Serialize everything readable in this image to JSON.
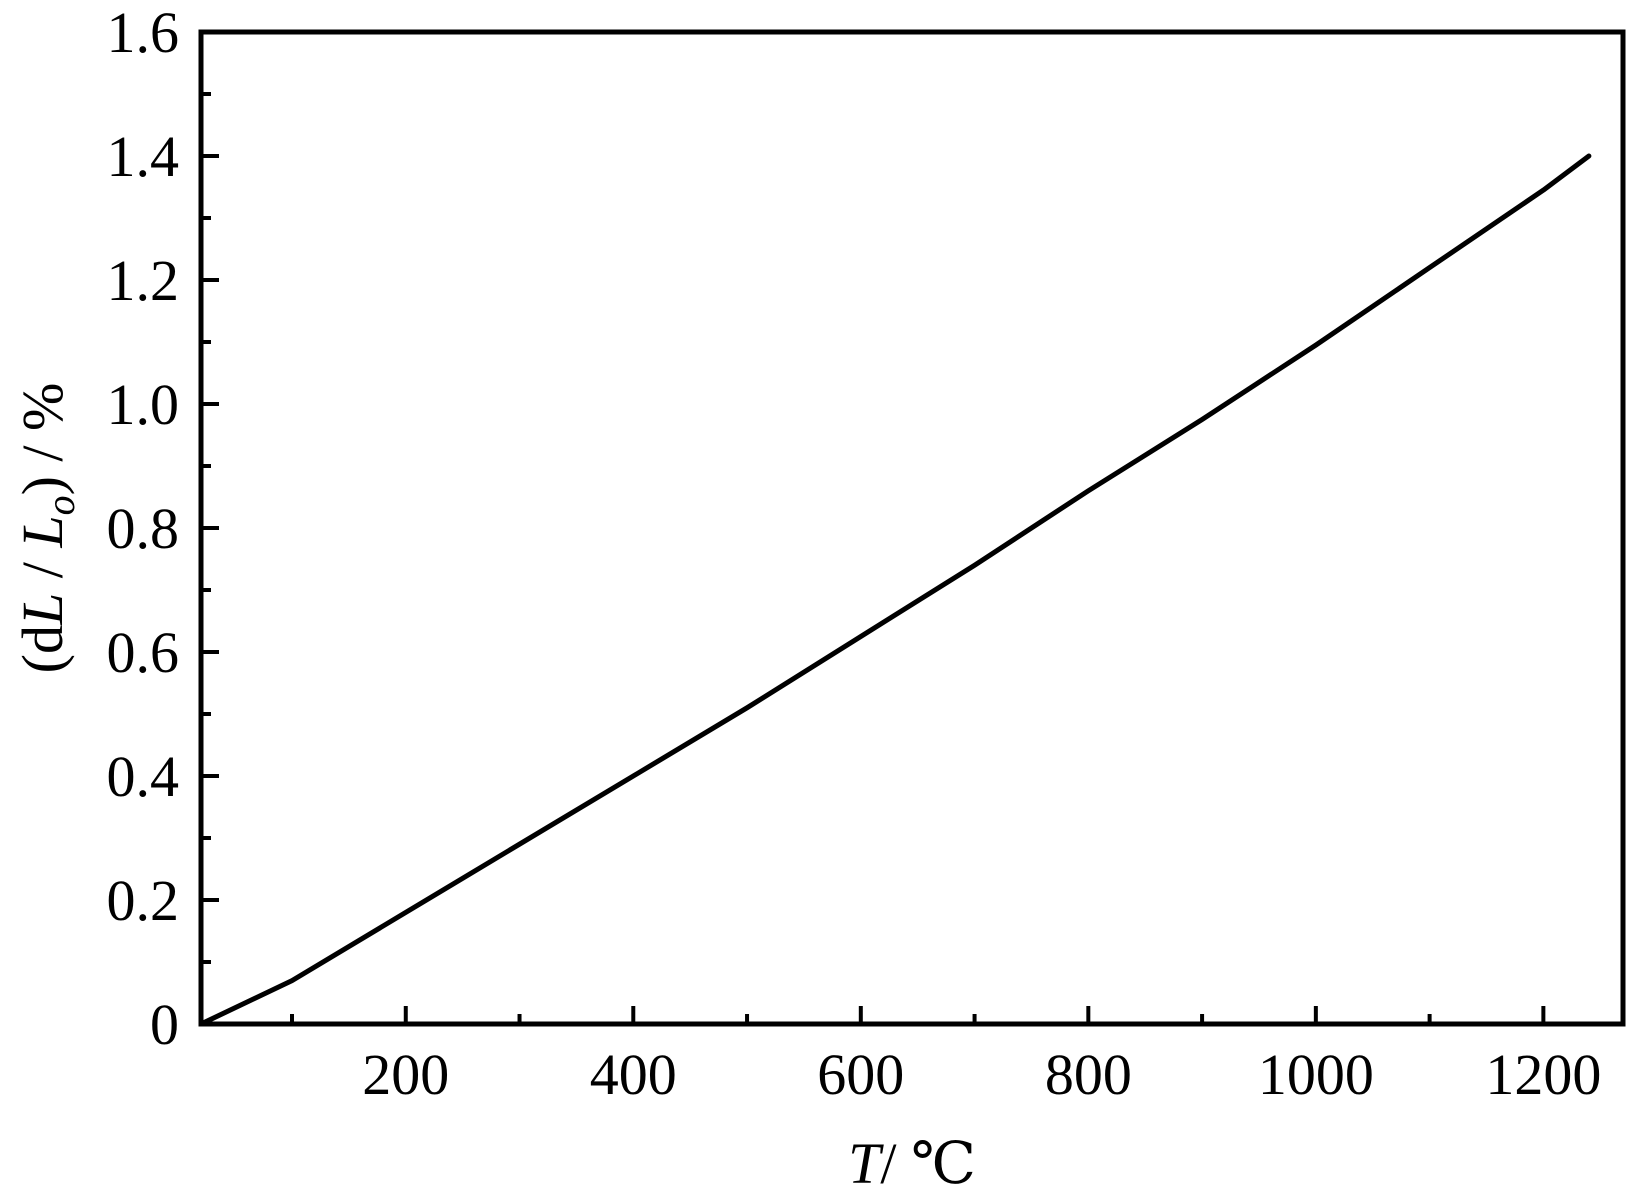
{
  "chart_data": {
    "type": "line",
    "title": "",
    "xlabel": {
      "var": "T",
      "unit": "/ ℃"
    },
    "ylabel": {
      "open": "(d",
      "var1": "L",
      "slash": " / ",
      "var2": "L",
      "sub": "o",
      "close": ") / %"
    },
    "xlim": [
      20,
      1270
    ],
    "ylim": [
      0,
      1.6
    ],
    "x_ticks": [
      200,
      400,
      600,
      800,
      1000,
      1200
    ],
    "x_tick_labels": [
      "200",
      "400",
      "600",
      "800",
      "1000",
      "1200"
    ],
    "x_minor_ticks": [
      100,
      300,
      500,
      700,
      900,
      1100
    ],
    "y_ticks": [
      0,
      0.2,
      0.4,
      0.6,
      0.8,
      1.0,
      1.2,
      1.4,
      1.6
    ],
    "y_tick_labels": [
      "0",
      "0.2",
      "0.4",
      "0.6",
      "0.8",
      "1.0",
      "1.2",
      "1.4",
      "1.6"
    ],
    "y_minor_ticks": [
      0.1,
      0.3,
      0.5,
      0.7,
      0.9,
      1.1,
      1.3,
      1.5
    ],
    "grid": false,
    "legend": "none",
    "series": [
      {
        "color": "#000000",
        "x": [
          20,
          100,
          200,
          300,
          400,
          500,
          600,
          700,
          800,
          900,
          1000,
          1100,
          1200,
          1240
        ],
        "y": [
          0.0,
          0.07,
          0.18,
          0.29,
          0.4,
          0.51,
          0.625,
          0.74,
          0.86,
          0.975,
          1.095,
          1.22,
          1.345,
          1.4
        ]
      }
    ]
  }
}
